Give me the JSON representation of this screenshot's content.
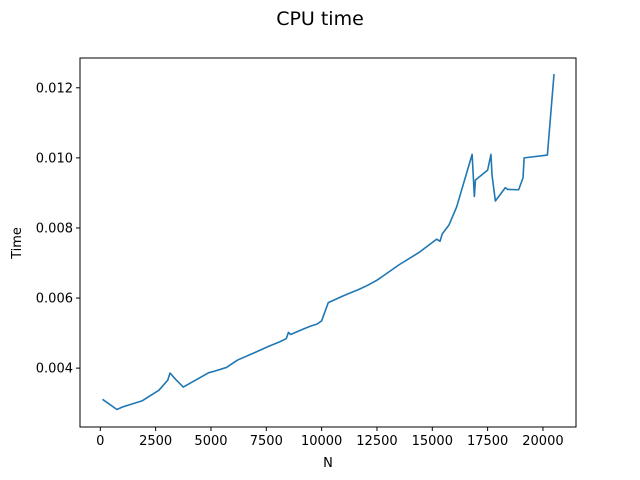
{
  "chart_data": {
    "type": "line",
    "title": "CPU time",
    "xlabel": "N",
    "ylabel": "Time",
    "xlim": [
      -918,
      21493
    ],
    "ylim": [
      0.00232,
      0.01285
    ],
    "xticks": [
      0,
      2500,
      5000,
      7500,
      10000,
      12500,
      15000,
      17500,
      20000
    ],
    "xtick_labels": [
      "0",
      "2500",
      "5000",
      "7500",
      "10000",
      "12500",
      "15000",
      "17500",
      "20000"
    ],
    "yticks": [
      0.004,
      0.006,
      0.008,
      0.01,
      0.012
    ],
    "ytick_labels": [
      "0.004",
      "0.006",
      "0.008",
      "0.010",
      "0.012"
    ],
    "grid": false,
    "series": [
      {
        "color": "#1f77b4",
        "x": [
          100,
          750,
          1000,
          1900,
          2650,
          3050,
          3150,
          3400,
          3750,
          4900,
          5150,
          5700,
          6200,
          7000,
          7600,
          8100,
          8400,
          8500,
          8600,
          9150,
          9500,
          9800,
          10000,
          10300,
          11000,
          11700,
          12100,
          12500,
          12800,
          13500,
          14400,
          15200,
          15350,
          15450,
          15750,
          16100,
          16800,
          16900,
          16950,
          17500,
          17650,
          17700,
          17850,
          18300,
          18400,
          18900,
          19100,
          19150,
          20200,
          20500
        ],
        "y": [
          0.00311,
          0.00282,
          0.00289,
          0.00307,
          0.00337,
          0.00366,
          0.00386,
          0.00368,
          0.00346,
          0.00387,
          0.00391,
          0.00402,
          0.00423,
          0.00445,
          0.00462,
          0.00475,
          0.00484,
          0.00502,
          0.00496,
          0.00511,
          0.0052,
          0.00526,
          0.00535,
          0.00587,
          0.00607,
          0.00625,
          0.00637,
          0.00651,
          0.00664,
          0.00695,
          0.0073,
          0.00768,
          0.00762,
          0.00783,
          0.00808,
          0.0086,
          0.0101,
          0.0089,
          0.00937,
          0.00965,
          0.0101,
          0.0095,
          0.00877,
          0.00915,
          0.0091,
          0.00909,
          0.00943,
          0.01,
          0.01008,
          0.01239
        ]
      }
    ]
  }
}
